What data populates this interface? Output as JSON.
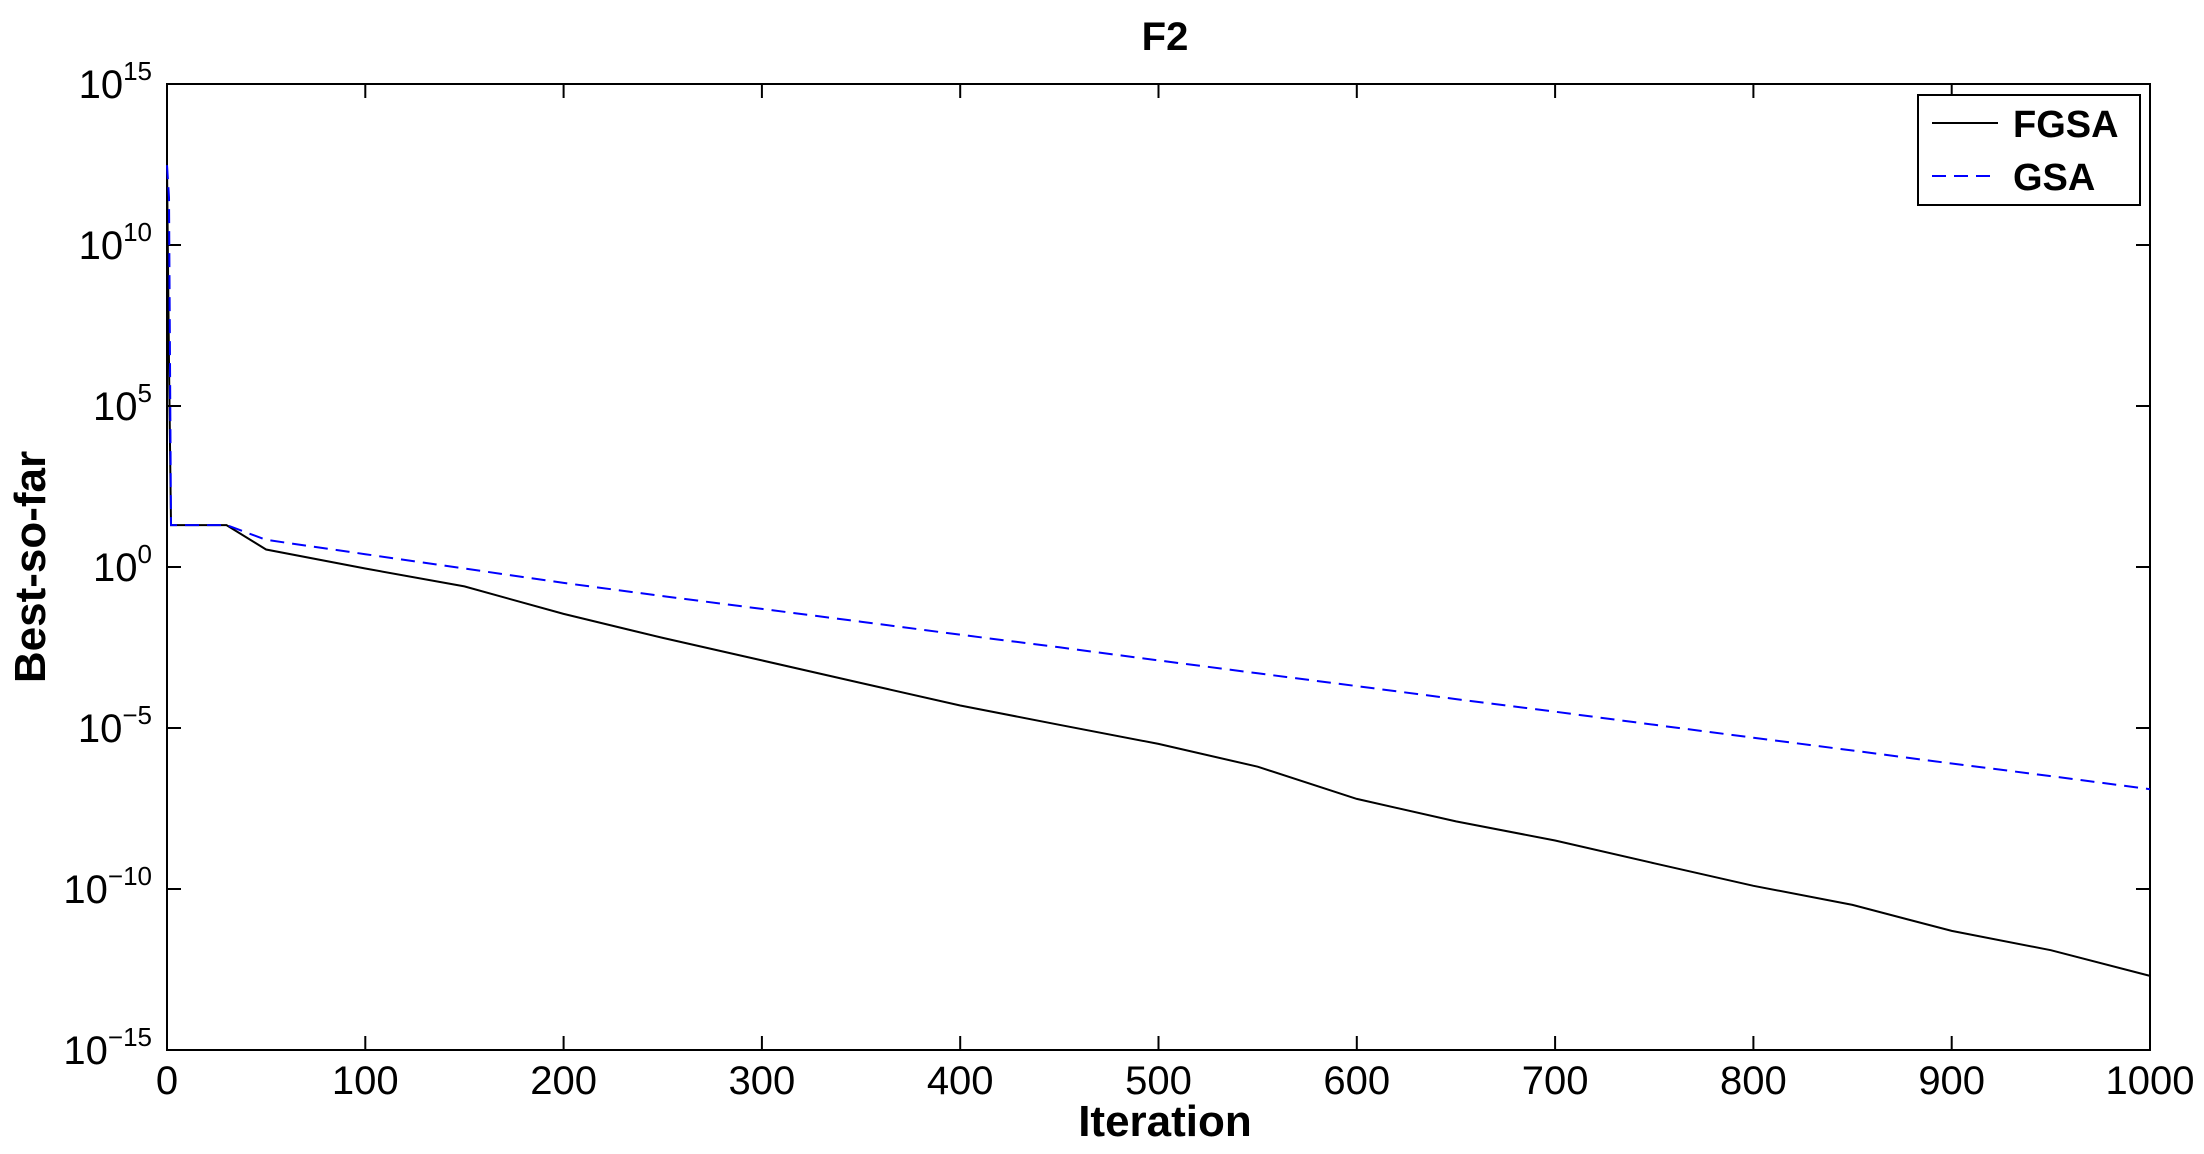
{
  "chart_data": {
    "type": "line",
    "title": "F2",
    "xlabel": "Iteration",
    "ylabel": "Best-so-far",
    "xlim": [
      0,
      1000
    ],
    "ylim": [
      1e-15,
      1000000000000000.0
    ],
    "yscale": "log",
    "xticks": [
      0,
      100,
      200,
      300,
      400,
      500,
      600,
      700,
      800,
      900,
      1000
    ],
    "yticks": [
      {
        "base": "10",
        "exp": "15",
        "value": 1000000000000000.0
      },
      {
        "base": "10",
        "exp": "10",
        "value": 10000000000.0
      },
      {
        "base": "10",
        "exp": "5",
        "value": 100000.0
      },
      {
        "base": "10",
        "exp": "0",
        "value": 1
      },
      {
        "base": "10",
        "exp": "−5",
        "value": 1e-05
      },
      {
        "base": "10",
        "exp": "−10",
        "value": 1e-10
      },
      {
        "base": "10",
        "exp": "−15",
        "value": 1e-15
      }
    ],
    "grid": false,
    "legend_position": "top-right",
    "series": [
      {
        "name": "FGSA",
        "color": "#000000",
        "style": "solid",
        "points": [
          [
            0,
            3000000000000.0
          ],
          [
            1,
            2000000.0
          ],
          [
            2,
            20
          ],
          [
            30,
            20
          ],
          [
            50,
            3.5
          ],
          [
            100,
            0.9
          ],
          [
            150,
            0.25
          ],
          [
            200,
            0.035
          ],
          [
            250,
            0.0063
          ],
          [
            300,
            0.00126
          ],
          [
            350,
            0.00025
          ],
          [
            400,
            5e-05
          ],
          [
            450,
            1.26e-05
          ],
          [
            500,
            3.2e-06
          ],
          [
            550,
            6.3e-07
          ],
          [
            600,
            6.3e-08
          ],
          [
            650,
            1.26e-08
          ],
          [
            700,
            3.2e-09
          ],
          [
            750,
            6.3e-10
          ],
          [
            800,
            1.26e-10
          ],
          [
            850,
            3.2e-11
          ],
          [
            900,
            5e-12
          ],
          [
            950,
            1.26e-12
          ],
          [
            1000,
            2e-13
          ]
        ]
      },
      {
        "name": "GSA",
        "color": "#0000ff",
        "style": "dashed",
        "points": [
          [
            0,
            3000000000000.0
          ],
          [
            1,
            300000000000.0
          ],
          [
            2,
            20
          ],
          [
            30,
            20
          ],
          [
            50,
            7
          ],
          [
            100,
            2.5
          ],
          [
            150,
            0.9
          ],
          [
            200,
            0.32
          ],
          [
            250,
            0.125
          ],
          [
            300,
            0.05
          ],
          [
            350,
            0.02
          ],
          [
            400,
            0.0079
          ],
          [
            450,
            0.0032
          ],
          [
            500,
            0.00126
          ],
          [
            550,
            0.0005
          ],
          [
            600,
            0.0002
          ],
          [
            650,
            7.9e-05
          ],
          [
            700,
            3.2e-05
          ],
          [
            750,
            1.26e-05
          ],
          [
            800,
            5e-06
          ],
          [
            850,
            2e-06
          ],
          [
            900,
            7.9e-07
          ],
          [
            950,
            3.2e-07
          ],
          [
            1000,
            1.26e-07
          ]
        ]
      }
    ]
  }
}
